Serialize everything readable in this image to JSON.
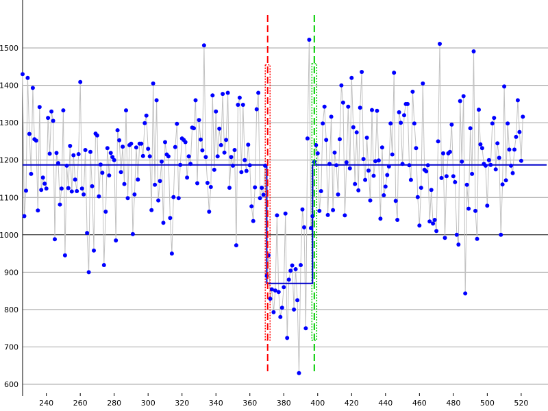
{
  "chart_data": {
    "type": "scatter",
    "title": "",
    "xlabel": "",
    "ylabel": "",
    "xlim": [
      226,
      535
    ],
    "ylim": [
      600,
      1550
    ],
    "x_ticks": [
      240,
      260,
      280,
      300,
      320,
      340,
      360,
      380,
      400,
      420,
      440,
      460,
      480,
      500,
      520
    ],
    "y_ticks": [
      600,
      700,
      800,
      900,
      1000,
      1100,
      1200,
      1300,
      1400,
      1500
    ],
    "grid": "horizontal",
    "highlight_gridline": 1000,
    "series": [
      {
        "x_start": 226,
        "x_step": 1,
        "y": [
          1430,
          1050,
          1118,
          1420,
          1270,
          1163,
          1393,
          1256,
          1252,
          1065,
          1342,
          1120,
          1153,
          1137,
          1124,
          1313,
          1217,
          1330,
          1305,
          988,
          1219,
          1192,
          1081,
          1124,
          1333,
          945,
          1185,
          1125,
          1238,
          1116,
          1213,
          1148,
          1117,
          1216,
          1409,
          1124,
          1108,
          1227,
          1005,
          900,
          1222,
          1130,
          958,
          1271,
          1266,
          1103,
          1188,
          1166,
          919,
          1062,
          1232,
          1159,
          1219,
          1208,
          1200,
          985,
          1280,
          1253,
          1168,
          1236,
          1136,
          1333,
          1098,
          1240,
          1244,
          1002,
          1108,
          1234,
          1148,
          1244,
          1244,
          1211,
          1299,
          1319,
          1230,
          1210,
          1066,
          1405,
          1134,
          1360,
          1092,
          1144,
          1196,
          1032,
          1248,
          1215,
          1210,
          1045,
          950,
          1101,
          1235,
          1297,
          1098,
          1187,
          1258,
          1254,
          1248,
          1153,
          1210,
          1190,
          1287,
          1285,
          1360,
          1138,
          1307,
          1255,
          1226,
          1507,
          1208,
          1139,
          1062,
          1128,
          1373,
          1174,
          1330,
          1210,
          1284,
          1240,
          1377,
          1220,
          1254,
          1380,
          1126,
          1208,
          1185,
          1227,
          972,
          1348,
          1367,
          1168,
          1348,
          1200,
          1171,
          1241,
          1186,
          1076,
          1037,
          1127,
          1336,
          1380,
          1098,
          1126,
          1107,
          1185,
          890,
          945,
          829,
          854,
          793,
          851,
          1052,
          847,
          780,
          805,
          860,
          1057,
          724,
          880,
          904,
          918,
          800,
          908,
          825,
          630,
          919,
          1068,
          1020,
          750,
          1258,
          1522,
          1018,
          1050,
          1195,
          1240,
          1218,
          1064,
          1117,
          1298,
          1343,
          1254,
          1053,
          1190,
          1316,
          1066,
          1220,
          1186,
          1108,
          1256,
          1400,
          1354,
          1052,
          1194,
          1343,
          1178,
          1420,
          1288,
          1136,
          1274,
          1119,
          1340,
          1436,
          1203,
          1147,
          1260,
          1172,
          1092,
          1334,
          1158,
          1197,
          1332,
          1199,
          1043,
          1234,
          1106,
          1129,
          1160,
          1183,
          1298,
          1215,
          1434,
          1091,
          1040,
          1328,
          1300,
          1190,
          1320,
          1350,
          1350,
          1186,
          1147,
          1383,
          1298,
          1232,
          1101,
          1025,
          1126,
          1405,
          1174,
          1170,
          1186,
          1036,
          1120,
          1030,
          1040,
          1010,
          1250,
          1511,
          1152,
          1218,
          992,
          1157,
          1218,
          1222,
          1295,
          1157,
          1141,
          1000,
          974,
          1358,
          1196,
          1371,
          843,
          1134,
          1070,
          1285,
          1163,
          1491,
          1064,
          989,
          1335,
          1242,
          1232,
          1190,
          1185,
          1078,
          1200,
          1187,
          1298,
          1313,
          1175,
          1245,
          1206,
          1000,
          1135,
          1397,
          1146,
          1298,
          1228,
          1185,
          1165,
          1228,
          1262,
          1360,
          1275,
          1198,
          1316
        ],
        "color": "#0000ff",
        "line_color": "#c0c0c0"
      }
    ],
    "segment_means": [
      {
        "x_from": 226,
        "x_to": 370,
        "y": 1187
      },
      {
        "x_from": 370,
        "x_to": 397,
        "y": 870
      },
      {
        "x_from": 397,
        "x_to": 535,
        "y": 1187
      }
    ],
    "mean_color": "#0000cc",
    "change_points": [
      {
        "x": 370.5,
        "color": "#ff0000",
        "band": [
          718,
          1455
        ]
      },
      {
        "x": 398,
        "color": "#00cc00",
        "band": [
          718,
          1458
        ]
      }
    ]
  }
}
